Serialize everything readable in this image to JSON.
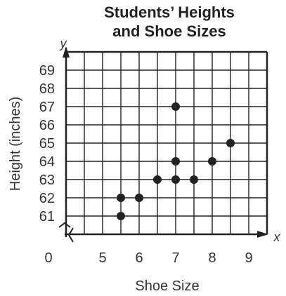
{
  "chart_data": {
    "type": "scatter",
    "title_lines": [
      "Students’ Heights",
      "and Shoe Sizes"
    ],
    "xlabel": "Shoe Size",
    "ylabel": "Height (inches)",
    "x_var": "x",
    "y_var": "y",
    "x_origin_label": "0",
    "x_ticks": [
      5,
      6,
      7,
      8,
      9
    ],
    "y_ticks": [
      61,
      62,
      63,
      64,
      65,
      66,
      67,
      68,
      69
    ],
    "xlim": [
      4,
      9.5
    ],
    "ylim": [
      60,
      70
    ],
    "axis_break": true,
    "grid": true,
    "points": [
      {
        "x": 5.5,
        "y": 61
      },
      {
        "x": 5.5,
        "y": 62
      },
      {
        "x": 6,
        "y": 62
      },
      {
        "x": 6.5,
        "y": 63
      },
      {
        "x": 7,
        "y": 63
      },
      {
        "x": 7.5,
        "y": 63
      },
      {
        "x": 7,
        "y": 64
      },
      {
        "x": 8,
        "y": 64
      },
      {
        "x": 8.5,
        "y": 65
      },
      {
        "x": 7,
        "y": 67
      }
    ],
    "colors": {
      "grid": "#222222",
      "point": "#222222",
      "axis": "#222222"
    }
  }
}
